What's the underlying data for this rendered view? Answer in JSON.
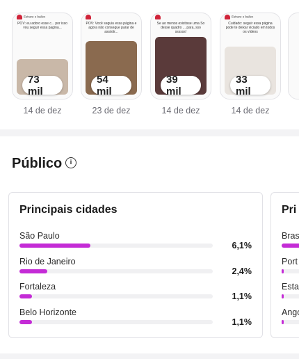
{
  "thumbnails": [
    {
      "header": "Estrare o bailex",
      "caption": "POV: eu adoro esse c... por isso vou seguir essa pagina...",
      "views": "73 mil",
      "date": "14 de dez",
      "image_color": "#c9b8a8"
    },
    {
      "header": "",
      "caption": "POV: Você seguiu essa página e agora não consegue parar de assistir...",
      "views": "54 mil",
      "date": "23 de dez",
      "image_color": "#8a6a4f"
    },
    {
      "header": "",
      "caption": "Se ao menos existisse uma So desse quadro ... para, sso ssssss!",
      "views": "39 mil",
      "date": "14 de dez",
      "image_color": "#5a3a3a"
    },
    {
      "header": "Estrare o bailex",
      "caption": "Cuidado: seguir essa página pode te deixar viciado em todos os vídeos",
      "views": "33 mil",
      "date": "14 de dez",
      "image_color": "#e9e4df"
    }
  ],
  "public": {
    "title": "Público",
    "info_icon": "info-icon"
  },
  "cities_card": {
    "title": "Principais cidades",
    "rows": [
      {
        "label": "São Paulo",
        "value": "6,1%",
        "fraction": 0.061
      },
      {
        "label": "Rio de Janeiro",
        "value": "2,4%",
        "fraction": 0.024
      },
      {
        "label": "Fortaleza",
        "value": "1,1%",
        "fraction": 0.011
      },
      {
        "label": "Belo Horizonte",
        "value": "1,1%",
        "fraction": 0.011
      }
    ]
  },
  "countries_card": {
    "title": "Pri",
    "rows": [
      {
        "label": "Bras",
        "fraction": 0.9
      },
      {
        "label": "Port",
        "fraction": 0.02
      },
      {
        "label": "Esta",
        "fraction": 0.01
      },
      {
        "label": "Ango",
        "fraction": 0.01
      }
    ]
  },
  "colors": {
    "accent": "#c42bd6",
    "heart": "#d0243a"
  }
}
